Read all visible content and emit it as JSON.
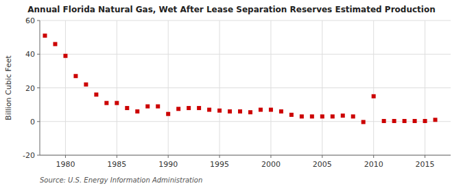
{
  "chart_data": {
    "type": "scatter",
    "title": "Annual Florida Natural Gas, Wet After Lease Separation Reserves Estimated Production",
    "ylabel": "Billion Cubic Feet",
    "source": "Source: U.S. Energy Information Administration",
    "x": [
      1978,
      1979,
      1980,
      1981,
      1982,
      1983,
      1984,
      1985,
      1986,
      1987,
      1988,
      1989,
      1990,
      1991,
      1992,
      1993,
      1994,
      1995,
      1996,
      1997,
      1998,
      1999,
      2000,
      2001,
      2002,
      2003,
      2004,
      2005,
      2006,
      2007,
      2008,
      2009,
      2010,
      2011,
      2012,
      2013,
      2014,
      2015,
      2016
    ],
    "values": [
      51,
      46,
      39,
      27,
      22,
      16,
      11,
      11,
      8,
      6,
      9,
      9,
      4.5,
      7.5,
      8,
      8,
      7,
      6.5,
      6,
      6,
      5.5,
      7,
      7,
      6,
      4,
      3,
      3,
      3,
      3,
      3.5,
      3,
      -0.3,
      15,
      0.3,
      0.3,
      0.3,
      0.3,
      0.3,
      1
    ],
    "color": "#cc0000",
    "marker": "square",
    "xlim": [
      1977.5,
      2017.5
    ],
    "ylim": [
      -20,
      60
    ],
    "xticks": [
      1980,
      1985,
      1990,
      1995,
      2000,
      2005,
      2010,
      2015
    ],
    "yticks": [
      -20,
      0,
      20,
      40,
      60
    ],
    "grid": true
  }
}
